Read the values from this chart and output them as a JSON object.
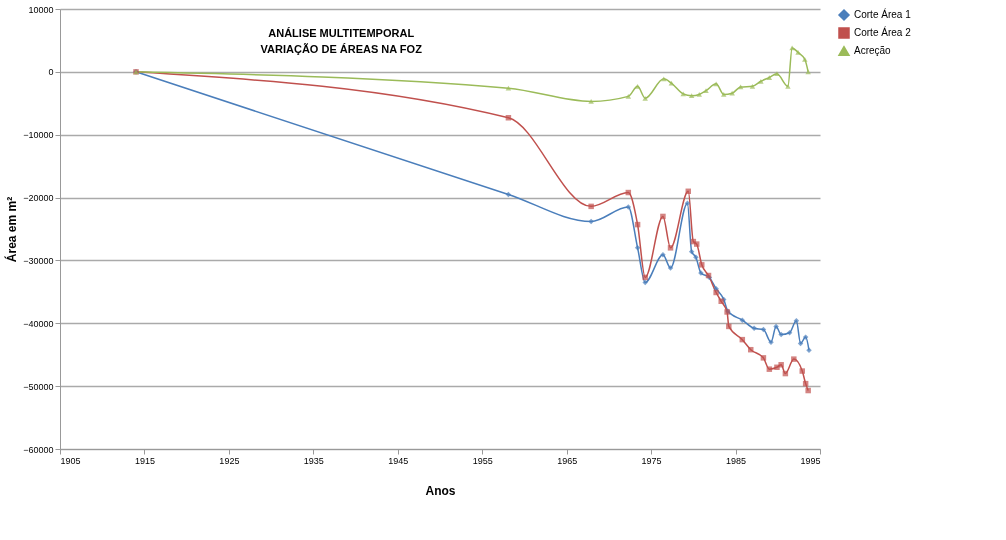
{
  "chart_data": {
    "type": "line",
    "title": "ANÁLISE MULTITEMPORAL\nVARIAÇÃO DE ÁREAS NA FOZ",
    "xlabel": "Anos",
    "ylabel": "Área em m²",
    "xlim": [
      1905,
      1995
    ],
    "xticks": [
      1905,
      1915,
      1925,
      1935,
      1945,
      1955,
      1965,
      1975,
      1985,
      1995
    ],
    "ylim": [
      -60000,
      10000
    ],
    "yticks": [
      10000,
      0,
      -10000,
      -20000,
      -30000,
      -40000,
      -50000,
      -60000
    ],
    "grid": "y",
    "legend": "right",
    "line_style": "solid",
    "series": [
      {
        "name": "Corte Área 1",
        "color": "#4a7ebb",
        "marker": "diamond",
        "x": [
          1914,
          1958.1,
          1967.9,
          1972.3,
          1973.4,
          1974.3,
          1976.4,
          1977.3,
          1979.3,
          1979.8,
          1980.3,
          1980.9,
          1981.9,
          1982.7,
          1983.6,
          1984.1,
          1985.8,
          1987.2,
          1988.3,
          1989.2,
          1989.8,
          1990.4,
          1991.4,
          1992.2,
          1992.7,
          1993.3,
          1993.7
        ],
        "values": [
          0,
          -19500,
          -23800,
          -21500,
          -28000,
          -33500,
          -29100,
          -31200,
          -20900,
          -28600,
          -29500,
          -32000,
          -32700,
          -34500,
          -36200,
          -38100,
          -39500,
          -40800,
          -41000,
          -43000,
          -40500,
          -41800,
          -41500,
          -39600,
          -43200,
          -42200,
          -44300
        ]
      },
      {
        "name": "Corte Área 2",
        "color": "#c0504d",
        "marker": "square",
        "x": [
          1914,
          1958.1,
          1967.9,
          1972.3,
          1973.4,
          1974.3,
          1976.4,
          1977.3,
          1979.4,
          1980,
          1980.4,
          1981,
          1981.8,
          1982.7,
          1983.3,
          1984,
          1984.2,
          1985.8,
          1986.8,
          1988.3,
          1989,
          1989.9,
          1990.4,
          1990.9,
          1991.9,
          1992.9,
          1993.3,
          1993.6
        ],
        "values": [
          0,
          -7300,
          -21400,
          -19200,
          -24300,
          -32700,
          -23000,
          -28000,
          -19000,
          -27000,
          -27400,
          -30700,
          -32400,
          -35100,
          -36500,
          -38200,
          -40500,
          -42600,
          -44200,
          -45500,
          -47300,
          -47000,
          -46600,
          -48000,
          -45700,
          -47600,
          -49600,
          -50700
        ]
      },
      {
        "name": "Acreção",
        "color": "#9bbb59",
        "marker": "triangle",
        "x": [
          1914,
          1958.1,
          1967.9,
          1972.3,
          1973.4,
          1974.3,
          1976.5,
          1977.4,
          1978.8,
          1979.8,
          1980.7,
          1981.5,
          1982.7,
          1983.6,
          1984.6,
          1985.6,
          1987,
          1988,
          1989,
          1989.9,
          1991.2,
          1991.7,
          1992.4,
          1993.2,
          1993.6
        ],
        "values": [
          0,
          -2600,
          -4700,
          -3900,
          -2300,
          -4200,
          -1100,
          -1800,
          -3500,
          -3800,
          -3600,
          -3000,
          -1900,
          -3600,
          -3400,
          -2400,
          -2300,
          -1500,
          -900,
          -300,
          -2300,
          3800,
          3100,
          2000,
          0
        ]
      }
    ]
  }
}
